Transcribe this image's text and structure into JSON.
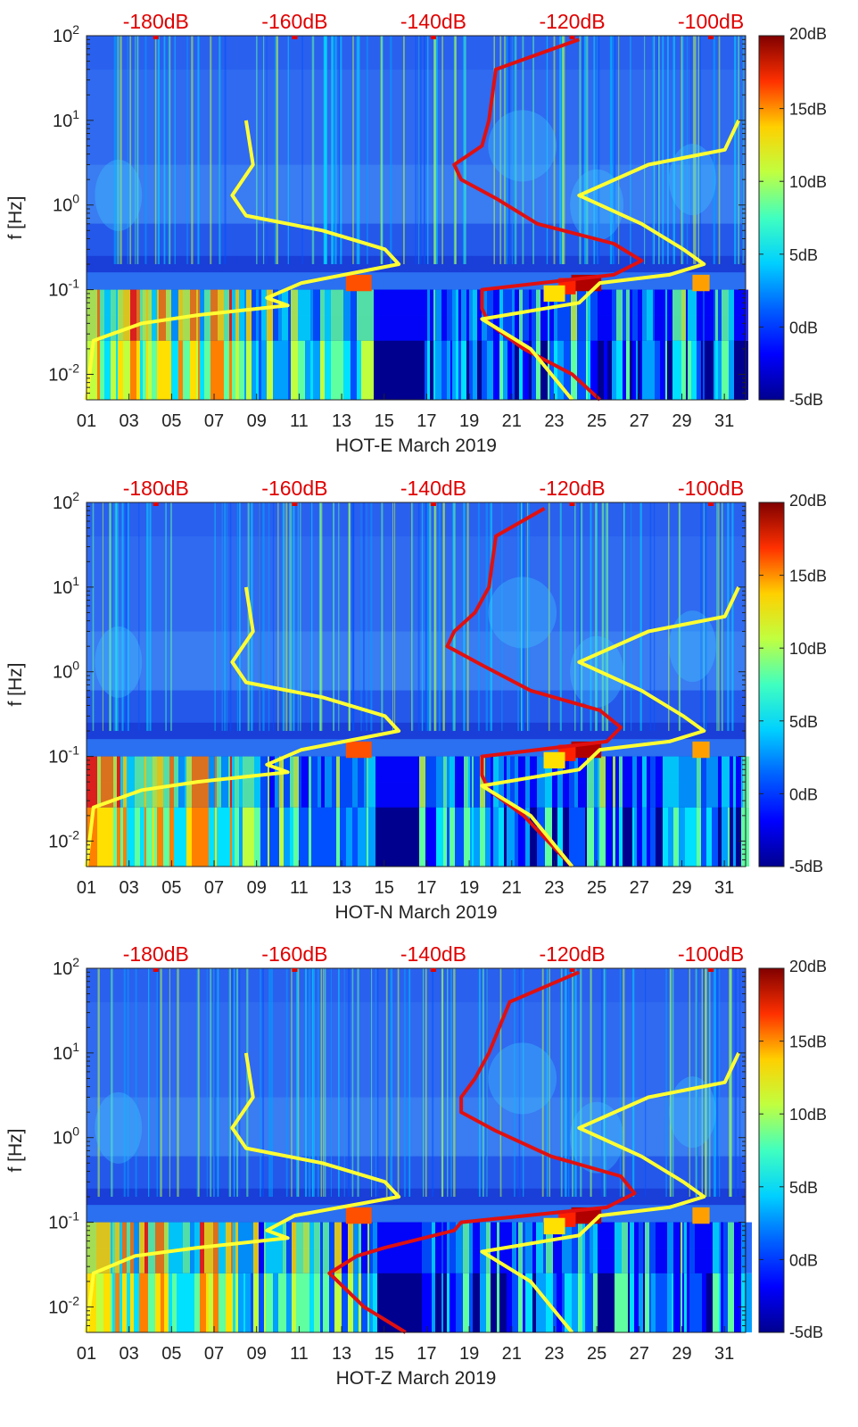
{
  "colors": {
    "top_axis": "#e00000",
    "red_curve": "#e01010",
    "yellow_curve": "#ffff33",
    "colormap": [
      "#00008f",
      "#0000ff",
      "#0080ff",
      "#00ffff",
      "#80ff80",
      "#ffff00",
      "#ff8000",
      "#ff0000",
      "#800000"
    ]
  },
  "chart_data": [
    {
      "type": "heatmap",
      "title": "",
      "xlabel": "HOT-E March 2019",
      "ylabel": "f [Hz]",
      "x_ticks": [
        "01",
        "03",
        "05",
        "07",
        "09",
        "11",
        "13",
        "15",
        "17",
        "19",
        "21",
        "23",
        "25",
        "27",
        "29",
        "31"
      ],
      "x_range": [
        1,
        32
      ],
      "y_scale": "log",
      "y_range": [
        0.005,
        100
      ],
      "y_ticks": [
        {
          "exp": "-2",
          "value": 0.01
        },
        {
          "exp": "-1",
          "value": 0.1
        },
        {
          "exp": "0",
          "value": 1
        },
        {
          "exp": "1",
          "value": 10
        },
        {
          "exp": "2",
          "value": 100
        }
      ],
      "y_tick_base": "10",
      "top_axis_ticks": [
        "-180dB",
        "-160dB",
        "-140dB",
        "-120dB",
        "-100dB"
      ],
      "top_axis_range": [
        -190,
        -95
      ],
      "colorbar": {
        "range": [
          -5,
          20
        ],
        "ticks": [
          "20dB",
          "15dB",
          "10dB",
          "5dB",
          "0dB",
          "-5dB"
        ]
      },
      "series": [
        {
          "name": "red noise curve",
          "points": [
            [
              -119,
              90
            ],
            [
              -131,
              40
            ],
            [
              -132,
              10
            ],
            [
              -133,
              5
            ],
            [
              -137,
              3
            ],
            [
              -136,
              2
            ],
            [
              -131,
              1.2
            ],
            [
              -125,
              0.6
            ],
            [
              -114,
              0.35
            ],
            [
              -110,
              0.22
            ],
            [
              -114,
              0.15
            ],
            [
              -133,
              0.1
            ],
            [
              -133,
              0.06
            ],
            [
              -132,
              0.04
            ],
            [
              -127,
              0.02
            ],
            [
              -120,
              0.01
            ],
            [
              -116,
              0.005
            ]
          ]
        },
        {
          "name": "yellow noise curve",
          "points": [
            [
              -167,
              10
            ],
            [
              -166,
              3
            ],
            [
              -169,
              1.3
            ],
            [
              -167,
              0.75
            ],
            [
              -156,
              0.5
            ],
            [
              -147,
              0.3
            ],
            [
              -145,
              0.2
            ],
            [
              -159,
              0.12
            ],
            [
              -164,
              0.08
            ],
            [
              -161,
              0.065
            ],
            [
              -174,
              0.05
            ],
            [
              -182,
              0.04
            ],
            [
              -189,
              0.025
            ],
            [
              -190,
              0.005
            ]
          ]
        },
        {
          "name": "yellow noise curve 2",
          "points": [
            [
              -96,
              10
            ],
            [
              -98,
              4.5
            ],
            [
              -109,
              3
            ],
            [
              -119,
              1.3
            ],
            [
              -110,
              0.6
            ],
            [
              -104,
              0.3
            ],
            [
              -101,
              0.2
            ],
            [
              -106,
              0.15
            ],
            [
              -116,
              0.12
            ],
            [
              -119,
              0.07
            ],
            [
              -133,
              0.045
            ],
            [
              -126,
              0.02
            ],
            [
              -120,
              0.005
            ]
          ]
        }
      ]
    },
    {
      "type": "heatmap",
      "title": "",
      "xlabel": "HOT-N March 2019",
      "ylabel": "f [Hz]",
      "x_ticks": [
        "01",
        "03",
        "05",
        "07",
        "09",
        "11",
        "13",
        "15",
        "17",
        "19",
        "21",
        "23",
        "25",
        "27",
        "29",
        "31"
      ],
      "x_range": [
        1,
        32
      ],
      "y_scale": "log",
      "y_range": [
        0.005,
        100
      ],
      "y_ticks": [
        {
          "exp": "-2",
          "value": 0.01
        },
        {
          "exp": "-1",
          "value": 0.1
        },
        {
          "exp": "0",
          "value": 1
        },
        {
          "exp": "1",
          "value": 10
        },
        {
          "exp": "2",
          "value": 100
        }
      ],
      "y_tick_base": "10",
      "top_axis_ticks": [
        "-180dB",
        "-160dB",
        "-140dB",
        "-120dB",
        "-100dB"
      ],
      "top_axis_range": [
        -190,
        -95
      ],
      "colorbar": {
        "range": [
          -5,
          20
        ],
        "ticks": [
          "20dB",
          "15dB",
          "10dB",
          "5dB",
          "0dB",
          "-5dB"
        ]
      },
      "series": [
        {
          "name": "red noise curve",
          "points": [
            [
              -124,
              85
            ],
            [
              -131,
              40
            ],
            [
              -132,
              10
            ],
            [
              -134,
              5
            ],
            [
              -137,
              3
            ],
            [
              -138,
              2
            ],
            [
              -133,
              1.2
            ],
            [
              -126,
              0.6
            ],
            [
              -116,
              0.35
            ],
            [
              -113,
              0.22
            ],
            [
              -115,
              0.15
            ],
            [
              -133,
              0.1
            ],
            [
              -133,
              0.06
            ],
            [
              -132,
              0.04
            ],
            [
              -127,
              0.02
            ],
            [
              -120,
              0.005
            ]
          ]
        },
        {
          "name": "yellow noise curve",
          "points": [
            [
              -167,
              10
            ],
            [
              -166,
              3
            ],
            [
              -169,
              1.3
            ],
            [
              -167,
              0.75
            ],
            [
              -156,
              0.5
            ],
            [
              -147,
              0.3
            ],
            [
              -145,
              0.2
            ],
            [
              -159,
              0.12
            ],
            [
              -164,
              0.08
            ],
            [
              -161,
              0.065
            ],
            [
              -174,
              0.05
            ],
            [
              -182,
              0.04
            ],
            [
              -189,
              0.025
            ],
            [
              -190,
              0.005
            ]
          ]
        },
        {
          "name": "yellow noise curve 2",
          "points": [
            [
              -96,
              10
            ],
            [
              -98,
              4.5
            ],
            [
              -109,
              3
            ],
            [
              -119,
              1.3
            ],
            [
              -110,
              0.6
            ],
            [
              -104,
              0.3
            ],
            [
              -101,
              0.2
            ],
            [
              -106,
              0.15
            ],
            [
              -116,
              0.12
            ],
            [
              -119,
              0.07
            ],
            [
              -133,
              0.045
            ],
            [
              -126,
              0.02
            ],
            [
              -120,
              0.005
            ]
          ]
        }
      ]
    },
    {
      "type": "heatmap",
      "title": "",
      "xlabel": "HOT-Z March 2019",
      "ylabel": "f [Hz]",
      "x_ticks": [
        "01",
        "03",
        "05",
        "07",
        "09",
        "11",
        "13",
        "15",
        "17",
        "19",
        "21",
        "23",
        "25",
        "27",
        "29",
        "31"
      ],
      "x_range": [
        1,
        32
      ],
      "y_scale": "log",
      "y_range": [
        0.005,
        100
      ],
      "y_ticks": [
        {
          "exp": "-2",
          "value": 0.01
        },
        {
          "exp": "-1",
          "value": 0.1
        },
        {
          "exp": "0",
          "value": 1
        },
        {
          "exp": "1",
          "value": 10
        },
        {
          "exp": "2",
          "value": 100
        }
      ],
      "y_tick_base": "10",
      "top_axis_ticks": [
        "-180dB",
        "-160dB",
        "-140dB",
        "-120dB",
        "-100dB"
      ],
      "top_axis_range": [
        -190,
        -95
      ],
      "colorbar": {
        "range": [
          -5,
          20
        ],
        "ticks": [
          "20dB",
          "15dB",
          "10dB",
          "5dB",
          "0dB",
          "-5dB"
        ]
      },
      "series": [
        {
          "name": "red noise curve",
          "points": [
            [
              -119,
              90
            ],
            [
              -129,
              40
            ],
            [
              -132,
              10
            ],
            [
              -134,
              5
            ],
            [
              -136,
              3
            ],
            [
              -136,
              2
            ],
            [
              -131,
              1.2
            ],
            [
              -123,
              0.6
            ],
            [
              -113,
              0.35
            ],
            [
              -111,
              0.22
            ],
            [
              -115,
              0.15
            ],
            [
              -136,
              0.1
            ],
            [
              -137,
              0.08
            ],
            [
              -147,
              0.05
            ],
            [
              -151,
              0.04
            ],
            [
              -155,
              0.025
            ],
            [
              -150,
              0.01
            ],
            [
              -144,
              0.005
            ]
          ]
        },
        {
          "name": "yellow noise curve",
          "points": [
            [
              -167,
              10
            ],
            [
              -166,
              3
            ],
            [
              -169,
              1.3
            ],
            [
              -167,
              0.75
            ],
            [
              -156,
              0.5
            ],
            [
              -147,
              0.3
            ],
            [
              -145,
              0.2
            ],
            [
              -160,
              0.12
            ],
            [
              -164,
              0.08
            ],
            [
              -161,
              0.065
            ],
            [
              -174,
              0.05
            ],
            [
              -183,
              0.04
            ],
            [
              -189,
              0.025
            ],
            [
              -190,
              0.005
            ]
          ]
        },
        {
          "name": "yellow noise curve 2",
          "points": [
            [
              -96,
              10
            ],
            [
              -98,
              4.5
            ],
            [
              -109,
              3
            ],
            [
              -119,
              1.3
            ],
            [
              -110,
              0.6
            ],
            [
              -104,
              0.3
            ],
            [
              -101,
              0.2
            ],
            [
              -106,
              0.15
            ],
            [
              -116,
              0.12
            ],
            [
              -119,
              0.07
            ],
            [
              -133,
              0.045
            ],
            [
              -126,
              0.02
            ],
            [
              -120,
              0.005
            ]
          ]
        }
      ]
    }
  ]
}
